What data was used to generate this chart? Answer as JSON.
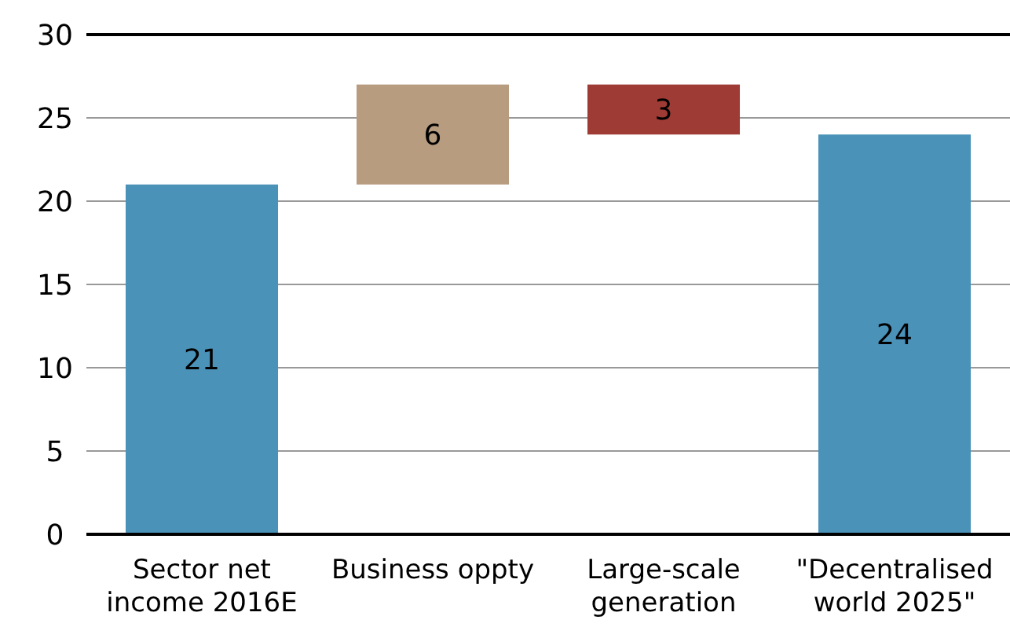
{
  "chart_data": {
    "type": "bar",
    "categories": [
      "Sector net income 2016E",
      "Business oppty",
      "Large-scale generation",
      "\"Decentralised world 2025\""
    ],
    "values": [
      21,
      6,
      3,
      24
    ],
    "base": [
      0,
      21,
      24,
      0
    ],
    "colors": [
      "#4a92b8",
      "#b89c80",
      "#9e3b35",
      "#4a92b8"
    ],
    "data_labels": true,
    "ylim": [
      0,
      30
    ],
    "yticks": [
      0,
      5,
      10,
      15,
      20,
      25,
      30
    ],
    "grid": "y"
  }
}
